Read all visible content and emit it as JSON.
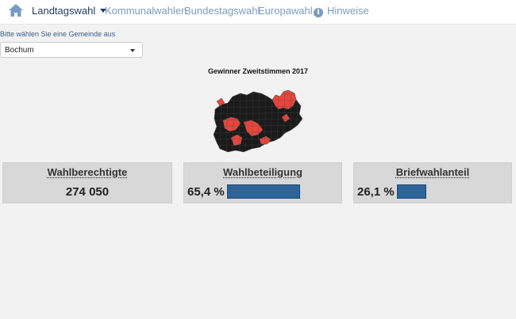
{
  "nav": {
    "home_icon": "home-icon",
    "items": [
      {
        "label": "Landtagswahl",
        "active": true
      },
      {
        "label": "Kommunalwahlen"
      },
      {
        "label": "Bundestagswahl"
      },
      {
        "label": "Europawahl"
      },
      {
        "label": "Hinweise",
        "icon": "info-icon"
      }
    ]
  },
  "gemeinde": {
    "prompt": "Bitte wählen Sie eine Gemeinde aus",
    "selected": "Bochum"
  },
  "map": {
    "title": "Gewinner Zweitstimmen 2017",
    "colors": {
      "dark": "#1a1a1a",
      "red": "#e8453c",
      "border": "#555555"
    }
  },
  "cards": {
    "wahlberechtigte": {
      "title": "Wahlberechtigte",
      "value": "274 050"
    },
    "wahlbeteiligung": {
      "title": "Wahlbeteiligung",
      "value": "65,4 %",
      "fraction": 0.654
    },
    "briefwahlanteil": {
      "title": "Briefwahlanteil",
      "value": "26,1 %",
      "fraction": 0.261
    }
  },
  "colors": {
    "bar": "#2e6398",
    "card": "#d8d8d8"
  }
}
